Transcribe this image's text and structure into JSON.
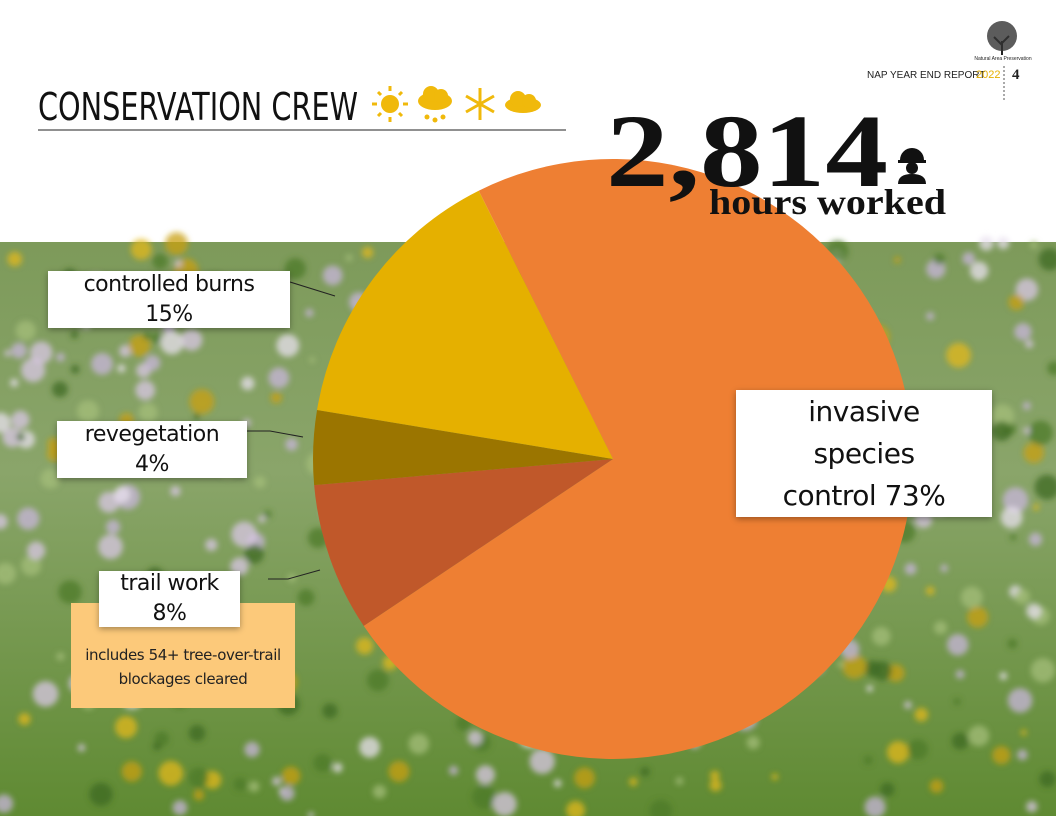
{
  "chart_data": {
    "type": "pie",
    "title": "CONSERVATION CREW",
    "categories": [
      "invasive species control",
      "trail work",
      "revegetation",
      "controlled burns"
    ],
    "values": [
      73,
      8,
      4,
      15
    ],
    "value_labels": [
      "73%",
      "8%",
      "4%",
      "15%"
    ],
    "colors": [
      "#ee7f33",
      "#c0582a",
      "#9b7500",
      "#e5b000"
    ],
    "total": "2,814",
    "total_label": "hours worked",
    "annotation": "includes 54+ tree-over-trail blockages cleared"
  },
  "header": {
    "report": "NAP YEAR END REPORT",
    "year": "2022",
    "page": "4",
    "logo": "Natural Area Preservation"
  }
}
